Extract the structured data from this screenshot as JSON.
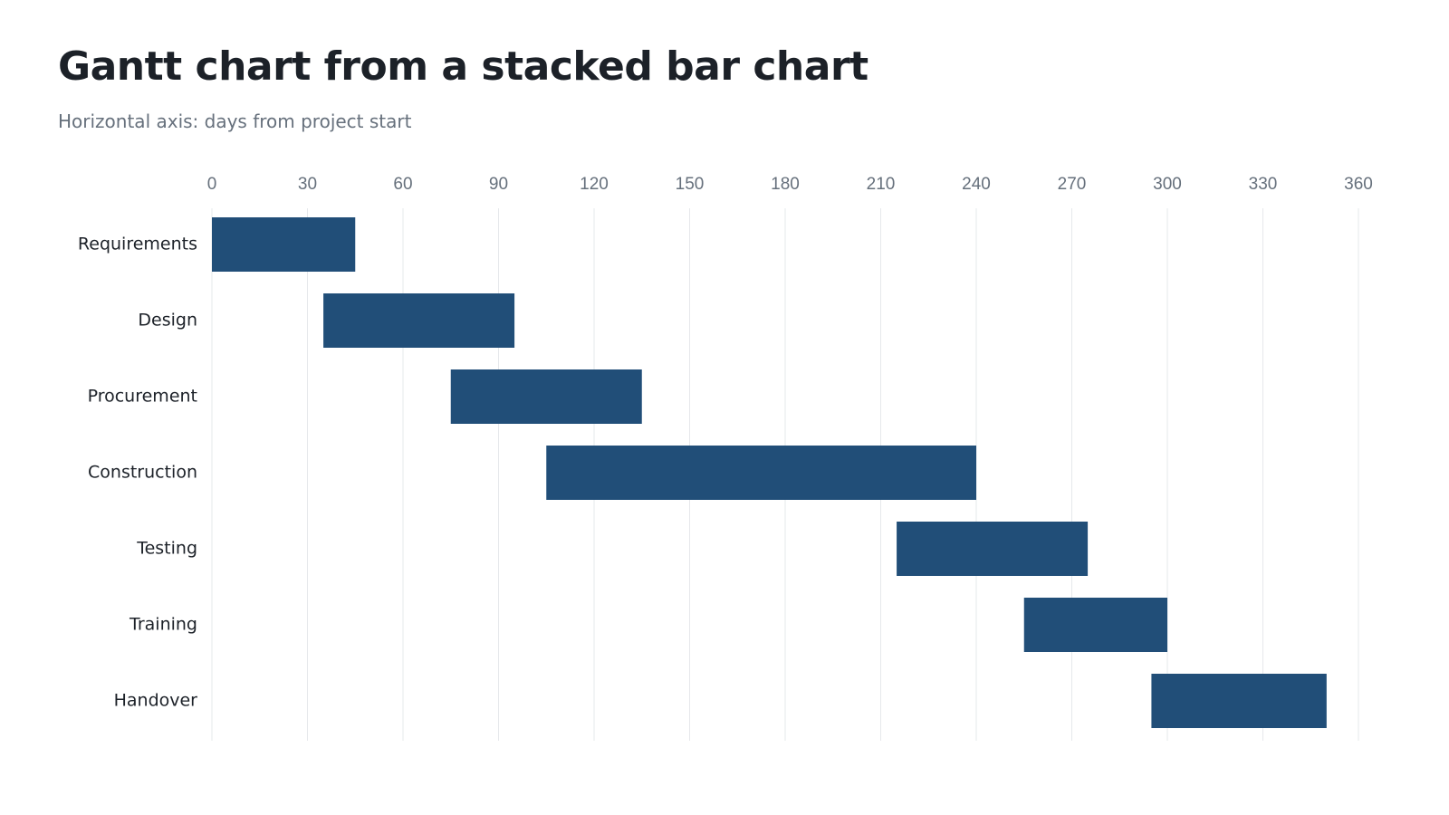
{
  "header": {
    "title": "Gantt chart from a stacked bar chart",
    "subtitle": "Horizontal axis: days from project start"
  },
  "colors": {
    "bar": "#214e78",
    "grid": "#e6e8eb",
    "title": "#1c2128",
    "subtitle": "#66707c"
  },
  "chart_data": {
    "type": "bar",
    "orientation": "horizontal",
    "stacked": true,
    "title": "Gantt chart from a stacked bar chart",
    "subtitle": "Horizontal axis: days from project start",
    "categories": [
      "Requirements",
      "Design",
      "Procurement",
      "Construction",
      "Testing",
      "Training",
      "Handover"
    ],
    "series": [
      {
        "role": "offset (transparent)",
        "values": [
          0,
          35,
          75,
          105,
          215,
          255,
          295
        ]
      },
      {
        "role": "duration",
        "values": [
          45,
          60,
          60,
          135,
          60,
          45,
          55
        ]
      }
    ],
    "xlim": [
      0,
      360
    ],
    "xticks": [
      0,
      30,
      60,
      90,
      120,
      150,
      180,
      210,
      240,
      270,
      300,
      330,
      360
    ],
    "x_axis_position": "top",
    "grid": true,
    "legend": "none"
  }
}
